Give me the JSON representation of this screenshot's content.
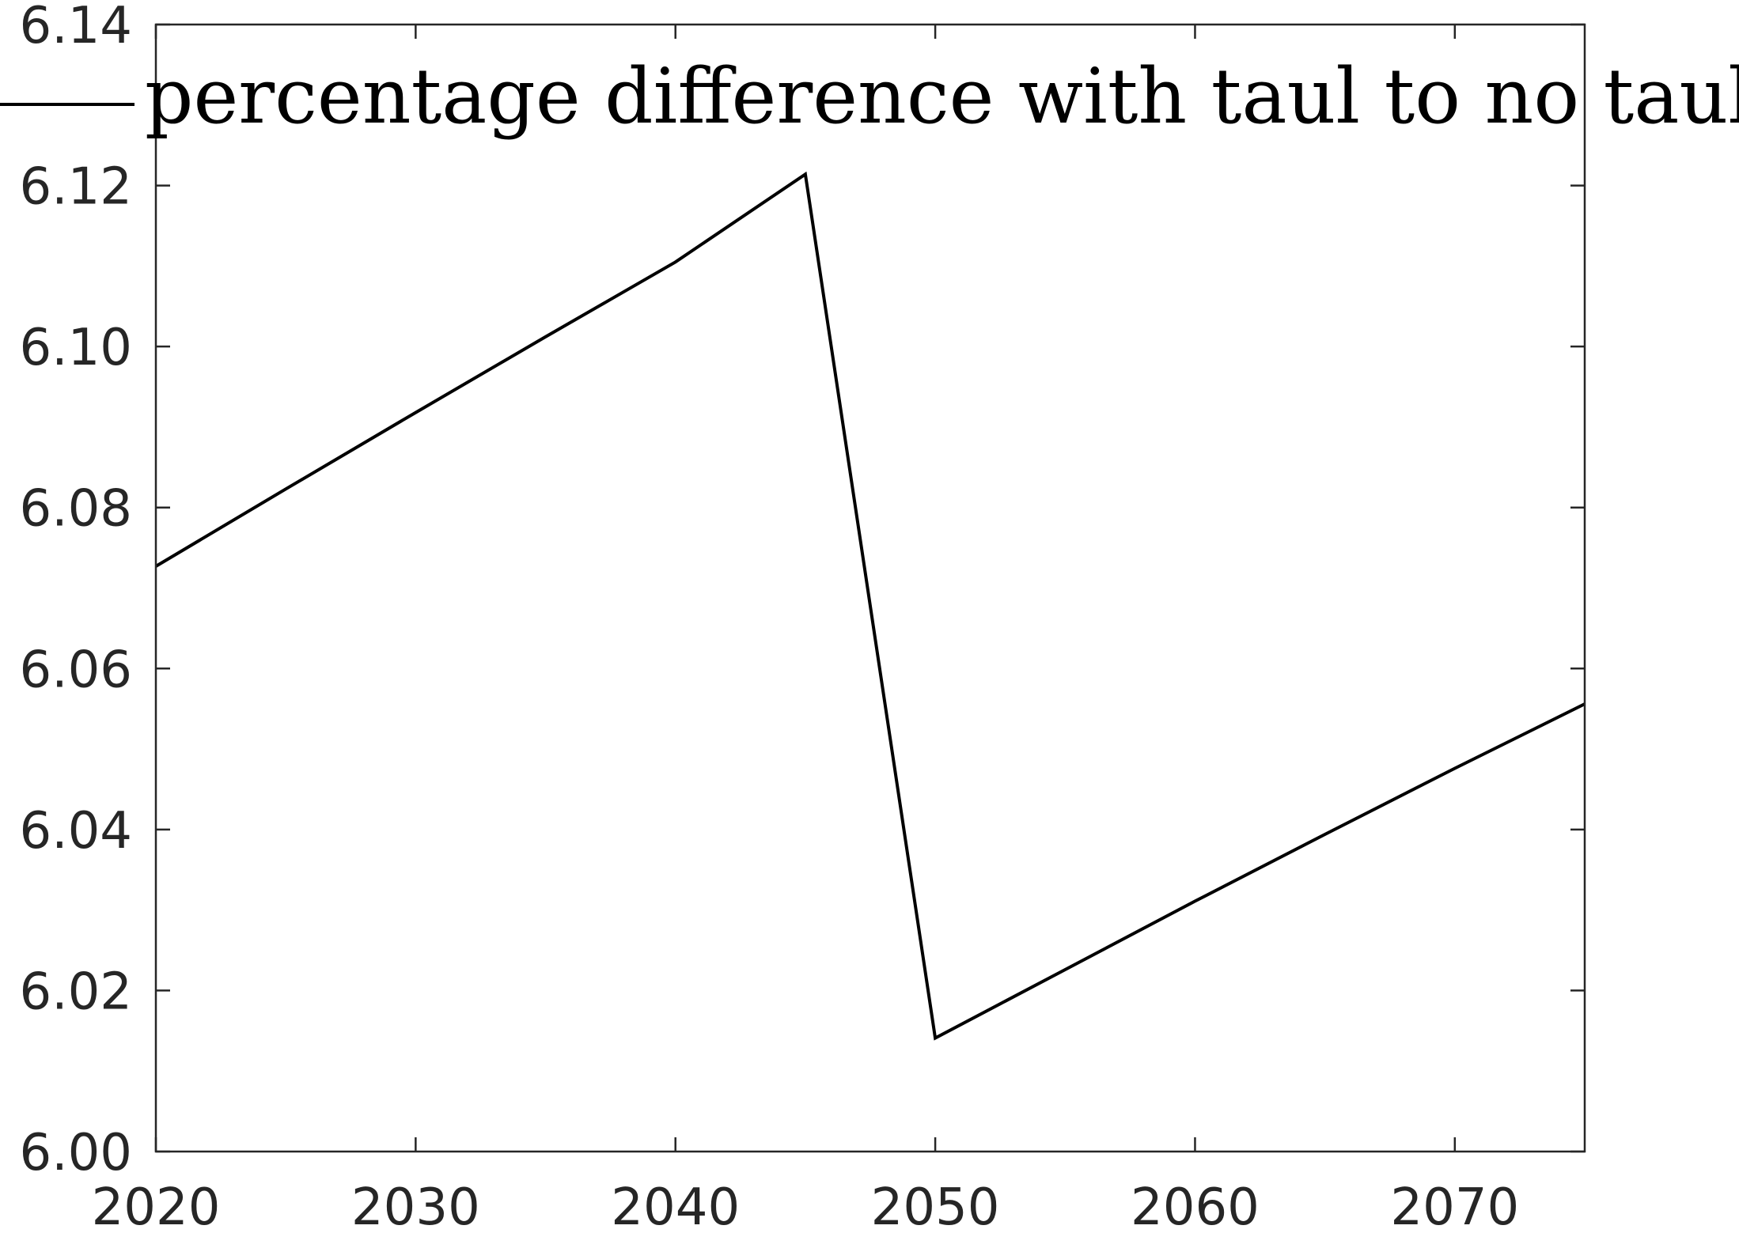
{
  "chart_data": {
    "type": "line",
    "title": "",
    "xlabel": "",
    "ylabel": "",
    "xlim": [
      2020,
      2075
    ],
    "ylim": [
      6.0,
      6.14
    ],
    "x_ticks": [
      2020,
      2030,
      2040,
      2050,
      2060,
      2070
    ],
    "x_tick_labels": [
      "2020",
      "2030",
      "2040",
      "2050",
      "2060",
      "2070"
    ],
    "y_ticks": [
      6.0,
      6.02,
      6.04,
      6.06,
      6.08,
      6.1,
      6.12,
      6.14
    ],
    "y_tick_labels": [
      "6.00",
      "6.02",
      "6.04",
      "6.06",
      "6.08",
      "6.10",
      "6.12",
      "6.14"
    ],
    "grid": false,
    "legend": {
      "position": "top",
      "entries": [
        "percentage difference with taul to no taul"
      ]
    },
    "series": [
      {
        "name": "percentage difference with taul to no taul",
        "color": "#000000",
        "x": [
          2020,
          2025,
          2030,
          2035,
          2040,
          2045,
          2050,
          2055,
          2060,
          2065,
          2070,
          2075
        ],
        "y": [
          6.0727,
          6.0823,
          6.0918,
          6.1012,
          6.1105,
          6.1214,
          6.0141,
          6.0226,
          6.0311,
          6.0394,
          6.0476,
          6.0556
        ]
      }
    ]
  }
}
